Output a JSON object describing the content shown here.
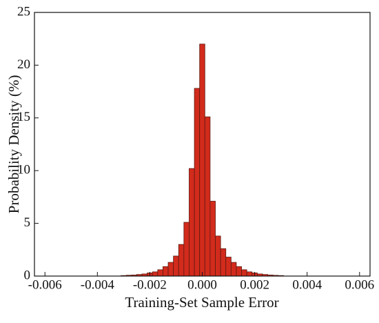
{
  "chart_data": {
    "type": "histogram",
    "xlabel": "Training-Set Sample Error",
    "ylabel": "Probability Density (%)",
    "bins": [
      -0.0031,
      -0.0029,
      -0.0027,
      -0.0025,
      -0.0023,
      -0.0021,
      -0.0019,
      -0.0017,
      -0.0015,
      -0.0013,
      -0.0011,
      -0.0009,
      -0.0007,
      -0.0005,
      -0.0003,
      -0.0001,
      0.0001,
      0.0003,
      0.0005,
      0.0007,
      0.0009,
      0.0011,
      0.0013,
      0.0015,
      0.0017,
      0.0019,
      0.0021,
      0.0023,
      0.0025,
      0.0027,
      0.0029,
      0.0031
    ],
    "values": [
      0.05,
      0.08,
      0.1,
      0.15,
      0.2,
      0.3,
      0.4,
      0.6,
      0.9,
      1.3,
      1.9,
      3.0,
      5.1,
      10.2,
      17.8,
      22.0,
      15.1,
      7.1,
      3.8,
      2.6,
      1.8,
      1.3,
      0.9,
      0.6,
      0.4,
      0.3,
      0.2,
      0.15,
      0.1,
      0.07,
      0.05
    ],
    "color": "#d22b1c",
    "edge_color": "#5a1a10",
    "xlim": [
      -0.0064,
      0.0064
    ],
    "ylim": [
      0,
      25
    ],
    "xticks": [
      -0.006,
      -0.004,
      -0.002,
      {
        "value": 0,
        "label": "0.000"
      },
      0.002,
      0.004,
      0.006
    ],
    "yticks": [
      0,
      5,
      10,
      15,
      20,
      25
    ]
  }
}
